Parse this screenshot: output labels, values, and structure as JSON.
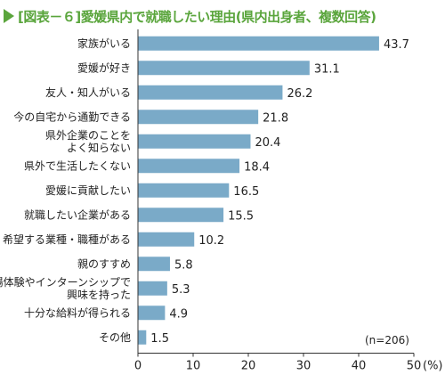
{
  "title": "[図表－６]愛媛県内で就職したい理由(県内出身者、複数回答)",
  "note": "(n=206)",
  "chart_data": {
    "type": "bar",
    "orientation": "horizontal",
    "categories": [
      [
        "家族がいる"
      ],
      [
        "愛媛が好き"
      ],
      [
        "友人・知人がいる"
      ],
      [
        "今の自宅から通勤できる"
      ],
      [
        "県外企業のことを",
        "よく知らない"
      ],
      [
        "県外で生活したくない"
      ],
      [
        "愛媛に貢献したい"
      ],
      [
        "就職したい企業がある"
      ],
      [
        "希望する業種・職種がある"
      ],
      [
        "親のすすめ"
      ],
      [
        "職場体験やインターンシップで",
        "興味を持った"
      ],
      [
        "十分な給料が得られる"
      ],
      [
        "その他"
      ]
    ],
    "values": [
      43.7,
      31.1,
      26.2,
      21.8,
      20.4,
      18.4,
      16.5,
      15.5,
      10.2,
      5.8,
      5.3,
      4.9,
      1.5
    ],
    "xlim": [
      0,
      50
    ],
    "xticks": [
      "0",
      "10",
      "20",
      "30",
      "40",
      "50"
    ],
    "xunit": "(%)",
    "bar_color": "#7aaac8",
    "grid": false
  }
}
